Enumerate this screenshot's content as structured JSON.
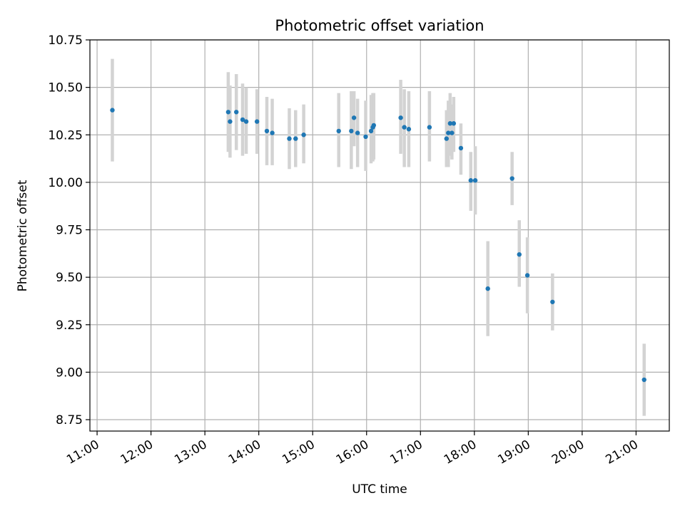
{
  "chart_data": {
    "type": "scatter",
    "title": "Photometric offset variation",
    "xlabel": "UTC time",
    "ylabel": "Photometric offset",
    "grid": true,
    "xlim": [
      "10:52",
      "21:37"
    ],
    "ylim": [
      8.69,
      10.75
    ],
    "x_ticks": [
      "11:00",
      "12:00",
      "13:00",
      "14:00",
      "15:00",
      "16:00",
      "17:00",
      "18:00",
      "19:00",
      "20:00",
      "21:00"
    ],
    "y_ticks": [
      "8.75",
      "9.00",
      "9.25",
      "9.50",
      "9.75",
      "10.00",
      "10.25",
      "10.50",
      "10.75"
    ],
    "colors": {
      "marker": "#1f77b4",
      "errorbar": "#d3d3d3",
      "grid": "#b0b0b0"
    },
    "series": [
      {
        "points": [
          {
            "x": "11:17",
            "y": 10.38,
            "ylo": 10.11,
            "yhi": 10.65
          },
          {
            "x": "13:26",
            "y": 10.37,
            "ylo": 10.16,
            "yhi": 10.58
          },
          {
            "x": "13:28",
            "y": 10.32,
            "ylo": 10.13,
            "yhi": 10.51
          },
          {
            "x": "13:35",
            "y": 10.37,
            "ylo": 10.17,
            "yhi": 10.57
          },
          {
            "x": "13:42",
            "y": 10.33,
            "ylo": 10.14,
            "yhi": 10.52
          },
          {
            "x": "13:46",
            "y": 10.32,
            "ylo": 10.15,
            "yhi": 10.5
          },
          {
            "x": "13:58",
            "y": 10.32,
            "ylo": 10.15,
            "yhi": 10.49
          },
          {
            "x": "14:09",
            "y": 10.27,
            "ylo": 10.09,
            "yhi": 10.45
          },
          {
            "x": "14:15",
            "y": 10.26,
            "ylo": 10.09,
            "yhi": 10.44
          },
          {
            "x": "14:34",
            "y": 10.23,
            "ylo": 10.07,
            "yhi": 10.39
          },
          {
            "x": "14:41",
            "y": 10.23,
            "ylo": 10.08,
            "yhi": 10.38
          },
          {
            "x": "14:50",
            "y": 10.25,
            "ylo": 10.1,
            "yhi": 10.41
          },
          {
            "x": "15:29",
            "y": 10.27,
            "ylo": 10.08,
            "yhi": 10.47
          },
          {
            "x": "15:43",
            "y": 10.27,
            "ylo": 10.07,
            "yhi": 10.48
          },
          {
            "x": "15:46",
            "y": 10.34,
            "ylo": 10.19,
            "yhi": 10.48
          },
          {
            "x": "15:50",
            "y": 10.26,
            "ylo": 10.08,
            "yhi": 10.44
          },
          {
            "x": "15:59",
            "y": 10.24,
            "ylo": 10.06,
            "yhi": 10.43
          },
          {
            "x": "16:05",
            "y": 10.27,
            "ylo": 10.1,
            "yhi": 10.46
          },
          {
            "x": "16:07",
            "y": 10.29,
            "ylo": 10.11,
            "yhi": 10.47
          },
          {
            "x": "16:08",
            "y": 10.3,
            "ylo": 10.12,
            "yhi": 10.47
          },
          {
            "x": "16:38",
            "y": 10.34,
            "ylo": 10.15,
            "yhi": 10.54
          },
          {
            "x": "16:42",
            "y": 10.29,
            "ylo": 10.08,
            "yhi": 10.49
          },
          {
            "x": "16:47",
            "y": 10.28,
            "ylo": 10.08,
            "yhi": 10.48
          },
          {
            "x": "17:10",
            "y": 10.29,
            "ylo": 10.11,
            "yhi": 10.48
          },
          {
            "x": "17:29",
            "y": 10.23,
            "ylo": 10.08,
            "yhi": 10.38
          },
          {
            "x": "17:31",
            "y": 10.26,
            "ylo": 10.08,
            "yhi": 10.43
          },
          {
            "x": "17:33",
            "y": 10.31,
            "ylo": 10.14,
            "yhi": 10.47
          },
          {
            "x": "17:35",
            "y": 10.26,
            "ylo": 10.12,
            "yhi": 10.41
          },
          {
            "x": "17:37",
            "y": 10.31,
            "ylo": 10.16,
            "yhi": 10.45
          },
          {
            "x": "17:45",
            "y": 10.18,
            "ylo": 10.04,
            "yhi": 10.31
          },
          {
            "x": "17:56",
            "y": 10.01,
            "ylo": 9.85,
            "yhi": 10.16
          },
          {
            "x": "18:01",
            "y": 10.01,
            "ylo": 9.83,
            "yhi": 10.19
          },
          {
            "x": "18:15",
            "y": 9.44,
            "ylo": 9.19,
            "yhi": 9.69
          },
          {
            "x": "18:42",
            "y": 10.02,
            "ylo": 9.88,
            "yhi": 10.16
          },
          {
            "x": "18:50",
            "y": 9.62,
            "ylo": 9.45,
            "yhi": 9.8
          },
          {
            "x": "18:59",
            "y": 9.51,
            "ylo": 9.31,
            "yhi": 9.71
          },
          {
            "x": "19:27",
            "y": 9.37,
            "ylo": 9.22,
            "yhi": 9.52
          },
          {
            "x": "21:09",
            "y": 8.96,
            "ylo": 8.77,
            "yhi": 9.15
          }
        ]
      }
    ]
  }
}
